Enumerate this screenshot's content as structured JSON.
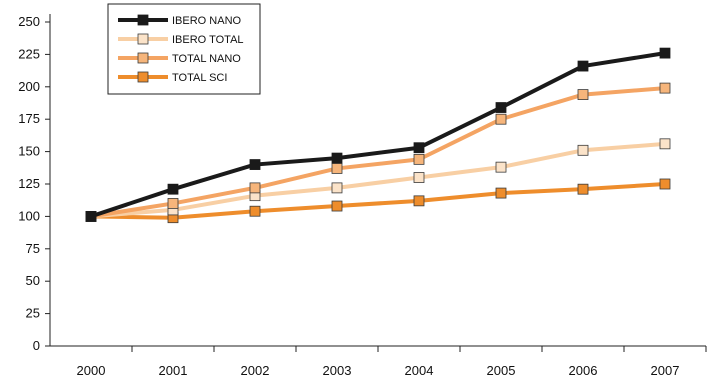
{
  "chart_data": {
    "type": "line",
    "title": "",
    "xlabel": "",
    "ylabel": "",
    "categories": [
      "2000",
      "2001",
      "2002",
      "2003",
      "2004",
      "2005",
      "2006",
      "2007"
    ],
    "ylim": [
      0,
      250
    ],
    "yticks": [
      0,
      25,
      50,
      75,
      100,
      125,
      150,
      175,
      200,
      225,
      250
    ],
    "grid": false,
    "legend_position": "top-left",
    "series": [
      {
        "name": "IBERO NANO",
        "line_color": "#1a1a1a",
        "marker_fill": "#1a1a1a",
        "marker_stroke": "#1a1a1a",
        "values": [
          100,
          121,
          140,
          145,
          153,
          184,
          216,
          226
        ]
      },
      {
        "name": "IBERO TOTAL",
        "line_color": "#f8cfa4",
        "marker_fill": "#fbe3c9",
        "marker_stroke": "#3a3a3a",
        "values": [
          100,
          105,
          116,
          122,
          130,
          138,
          151,
          156
        ]
      },
      {
        "name": "TOTAL NANO",
        "line_color": "#f4a463",
        "marker_fill": "#f6b57b",
        "marker_stroke": "#3a3a3a",
        "values": [
          100,
          110,
          122,
          137,
          144,
          175,
          194,
          199
        ]
      },
      {
        "name": "TOTAL SCI",
        "line_color": "#ee8d2c",
        "marker_fill": "#ee8d2c",
        "marker_stroke": "#3a3a3a",
        "values": [
          100,
          99,
          104,
          108,
          112,
          118,
          121,
          125
        ]
      }
    ]
  }
}
